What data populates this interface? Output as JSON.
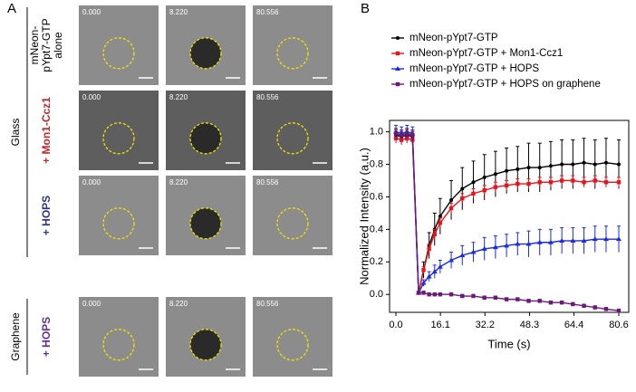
{
  "panel_a": {
    "label": "A",
    "timestamps": [
      "0.000",
      "8.220",
      "80.556"
    ],
    "rows": [
      {
        "lines": [
          "mNeon-",
          "pYpt7-GTP",
          "alone"
        ],
        "color": "#000000"
      },
      {
        "lines": [
          "+ Mon1-Ccz1"
        ],
        "color": "#c0272d"
      },
      {
        "lines": [
          "+ HOPS"
        ],
        "color": "#2e3192"
      },
      {
        "lines": [
          "+ HOPS"
        ],
        "color": "#662d91"
      }
    ],
    "groups": [
      "Glass",
      "Graphene"
    ]
  },
  "chart_data": {
    "type": "line",
    "panel_label": "B",
    "xlabel": "Time (s)",
    "ylabel": "Normalized Intensity (a.u.)",
    "x": [
      0,
      2,
      4,
      6,
      8.2,
      10,
      12,
      14,
      16,
      20,
      24,
      28,
      32,
      36,
      40,
      44,
      48,
      52,
      56,
      60,
      64,
      68,
      72,
      76,
      80.6
    ],
    "series": [
      {
        "name": "mNeon-pYpt7-GTP",
        "color": "#000000",
        "marker": "circle",
        "values": [
          0.98,
          0.97,
          0.98,
          0.97,
          0.01,
          0.15,
          0.3,
          0.4,
          0.48,
          0.58,
          0.65,
          0.69,
          0.72,
          0.74,
          0.76,
          0.77,
          0.78,
          0.78,
          0.79,
          0.8,
          0.8,
          0.81,
          0.8,
          0.81,
          0.8
        ],
        "errors": [
          0.04,
          0.04,
          0.04,
          0.04,
          0.01,
          0.05,
          0.08,
          0.1,
          0.11,
          0.12,
          0.13,
          0.13,
          0.14,
          0.14,
          0.14,
          0.14,
          0.15,
          0.15,
          0.15,
          0.15,
          0.15,
          0.15,
          0.15,
          0.15,
          0.15
        ]
      },
      {
        "name": "mNeon-pYpt7-GTP + Mon1-Ccz1",
        "color": "#e8141c",
        "marker": "square",
        "values": [
          0.96,
          0.95,
          0.96,
          0.95,
          0.01,
          0.15,
          0.28,
          0.37,
          0.44,
          0.53,
          0.59,
          0.62,
          0.64,
          0.66,
          0.67,
          0.68,
          0.68,
          0.69,
          0.69,
          0.7,
          0.7,
          0.69,
          0.7,
          0.69,
          0.69
        ],
        "errors": [
          0.03,
          0.03,
          0.03,
          0.03,
          0.01,
          0.02,
          0.03,
          0.03,
          0.03,
          0.03,
          0.03,
          0.03,
          0.03,
          0.03,
          0.03,
          0.03,
          0.03,
          0.03,
          0.03,
          0.03,
          0.03,
          0.03,
          0.03,
          0.03,
          0.03
        ]
      },
      {
        "name": "mNeon-pYpt7-GTP + HOPS",
        "color": "#1a2ce0",
        "marker": "triangle",
        "values": [
          1.0,
          0.99,
          1.0,
          0.99,
          0.01,
          0.07,
          0.11,
          0.14,
          0.17,
          0.21,
          0.24,
          0.26,
          0.28,
          0.29,
          0.3,
          0.31,
          0.31,
          0.32,
          0.32,
          0.33,
          0.33,
          0.33,
          0.34,
          0.34,
          0.34
        ],
        "errors": [
          0.04,
          0.04,
          0.04,
          0.04,
          0.01,
          0.02,
          0.03,
          0.04,
          0.04,
          0.05,
          0.06,
          0.06,
          0.07,
          0.07,
          0.07,
          0.07,
          0.08,
          0.08,
          0.08,
          0.08,
          0.08,
          0.08,
          0.08,
          0.08,
          0.08
        ]
      },
      {
        "name": "mNeon-pYpt7-GTP + HOPS  on graphene",
        "color": "#6b1a7a",
        "marker": "square",
        "values": [
          0.99,
          0.98,
          0.99,
          0.98,
          0.01,
          0.01,
          0.0,
          0.0,
          0.0,
          0.0,
          -0.01,
          -0.01,
          -0.02,
          -0.02,
          -0.03,
          -0.03,
          -0.04,
          -0.04,
          -0.05,
          -0.05,
          -0.06,
          -0.07,
          -0.08,
          -0.09,
          -0.1
        ],
        "errors": [
          0.02,
          0.02,
          0.02,
          0.02,
          0.01,
          0.01,
          0.01,
          0.01,
          0.01,
          0.01,
          0.01,
          0.01,
          0.01,
          0.01,
          0.01,
          0.01,
          0.01,
          0.01,
          0.01,
          0.01,
          0.01,
          0.01,
          0.01,
          0.01,
          0.01
        ]
      }
    ],
    "xlim": [
      -2.3,
      84.2
    ],
    "ylim": [
      -0.11,
      1.07
    ],
    "xticks": [
      {
        "value": 0,
        "label": "0.0"
      },
      16.1,
      32.2,
      48.3,
      64.4,
      80.6
    ],
    "yticks": [
      {
        "value": 0,
        "label": "0.0"
      },
      0.2,
      0.4,
      0.6,
      0.8,
      {
        "value": 1,
        "label": "1.0"
      }
    ],
    "grid": false
  }
}
